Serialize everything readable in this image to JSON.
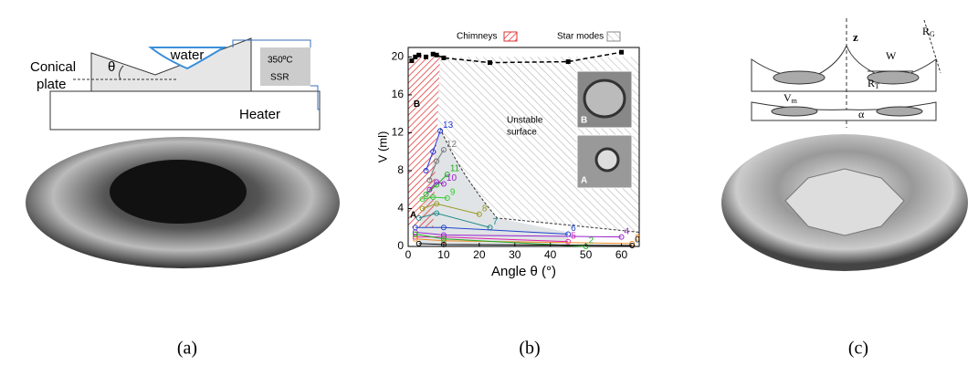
{
  "panel_a": {
    "water": "water",
    "theta": "θ",
    "plate": [
      "Conical",
      "plate"
    ],
    "temp": "350ºC",
    "ssr": "SSR",
    "heater": "Heater",
    "caption": "(a)"
  },
  "chart_data": {
    "type": "line",
    "xlabel": "Angle  θ (°)",
    "ylabel": "V (ml)",
    "xlim": [
      0,
      65
    ],
    "ylim": [
      0,
      21
    ],
    "xticks": [
      0,
      10,
      20,
      30,
      40,
      50,
      60
    ],
    "yticks": [
      0,
      4,
      8,
      12,
      16,
      20
    ],
    "regions": [
      {
        "name": "Chimneys",
        "color": "#e03030"
      },
      {
        "name": "Star modes",
        "color": "#888888"
      }
    ],
    "annotations": {
      "unstable": [
        "Unstable",
        "surface"
      ],
      "marker_a": "A",
      "marker_b": "B",
      "inset_b": "B",
      "inset_a": "A"
    },
    "series": [
      {
        "color": "#000000",
        "dashed": true,
        "x": [
          1,
          2,
          3,
          5,
          7,
          8,
          10,
          23,
          45,
          60
        ],
        "values": [
          19.6,
          20,
          20.2,
          20,
          20.3,
          20.2,
          19.9,
          19.4,
          19.5,
          20.5
        ]
      },
      {
        "name": "13",
        "color": "#2233dd",
        "x": [
          5,
          7,
          9
        ],
        "values": [
          8,
          10,
          12.2
        ]
      },
      {
        "name": "12",
        "color": "#777777",
        "x": [
          6,
          8,
          10
        ],
        "values": [
          7,
          9,
          10.2
        ]
      },
      {
        "name": "11",
        "color": "#22aa22",
        "x": [
          5,
          8,
          11
        ],
        "values": [
          5.5,
          6.5,
          7.6
        ]
      },
      {
        "name": "10",
        "color": "#9922cc",
        "x": [
          6,
          8,
          10
        ],
        "values": [
          6,
          6.8,
          6.6
        ]
      },
      {
        "name": "9",
        "color": "#33cc33",
        "x": [
          4,
          7,
          11
        ],
        "values": [
          5,
          5.2,
          5.1
        ]
      },
      {
        "name": "8",
        "color": "#999922",
        "x": [
          4,
          8,
          20
        ],
        "values": [
          4,
          4.5,
          3.4
        ]
      },
      {
        "name": "7",
        "color": "#22888a",
        "x": [
          3,
          8,
          23
        ],
        "values": [
          3,
          3.5,
          2
        ]
      },
      {
        "name": "6",
        "color": "#2244cc",
        "x": [
          2,
          10,
          45
        ],
        "values": [
          2,
          2,
          1.3
        ]
      },
      {
        "name": "5",
        "color": "#dd22aa",
        "x": [
          2,
          10,
          45
        ],
        "values": [
          1,
          1,
          0.5
        ]
      },
      {
        "name": "4",
        "color": "#9922cc",
        "x": [
          2,
          10,
          60
        ],
        "values": [
          1.5,
          1.2,
          1
        ]
      },
      {
        "name": "3",
        "color": "#ee8822",
        "x": [
          2,
          10,
          63
        ],
        "values": [
          0.8,
          0.6,
          0.3
        ]
      },
      {
        "name": "2",
        "color": "#22aa22",
        "x": [
          2,
          10,
          50
        ],
        "values": [
          1.3,
          0.8,
          0
        ]
      },
      {
        "name": "0",
        "color": "#000000",
        "x": [
          3,
          10,
          63
        ],
        "values": [
          0.3,
          0.2,
          0.1
        ]
      }
    ],
    "caption": "(b)"
  },
  "panel_c": {
    "z": "z",
    "rg": {
      "base": "R",
      "sub": "G"
    },
    "w": "W",
    "rt": {
      "base": "R",
      "sub": "T"
    },
    "vm": {
      "base": "V",
      "sub": "m"
    },
    "alpha": "α",
    "caption": "(c)"
  }
}
